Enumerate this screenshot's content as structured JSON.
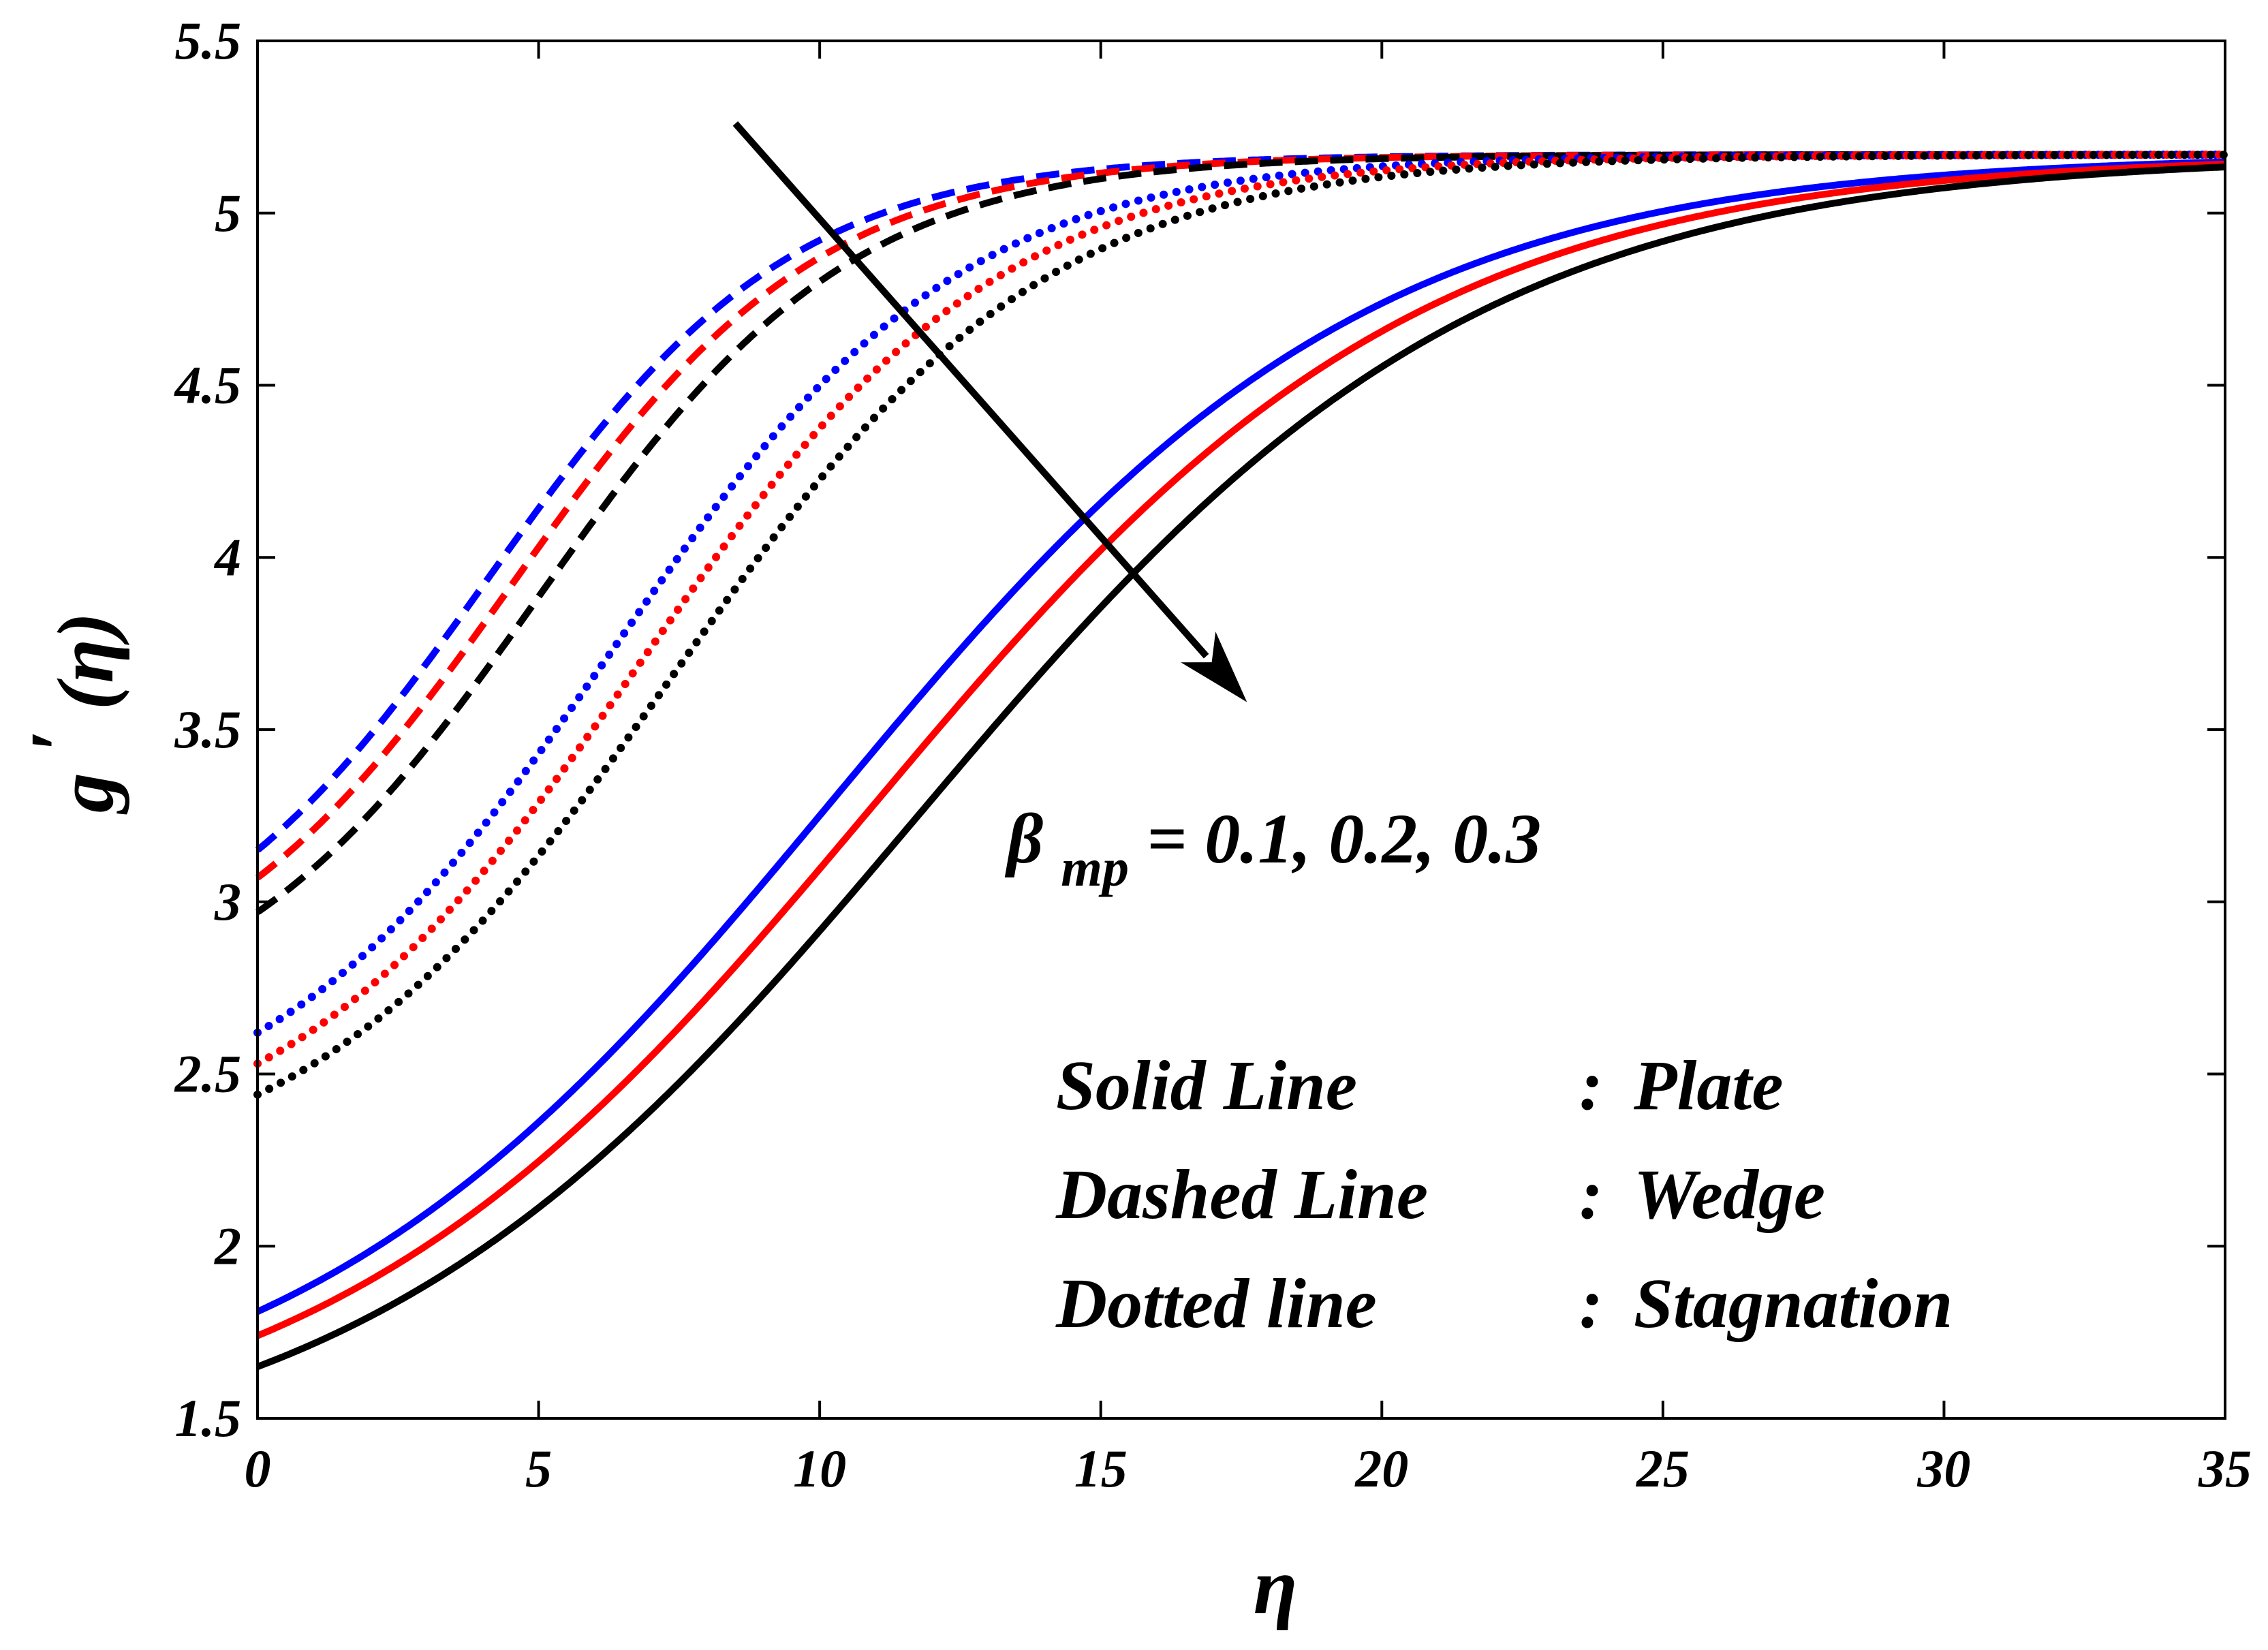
{
  "chart_data": {
    "type": "line",
    "title": "",
    "xlabel": "η",
    "ylabel_base": "g",
    "ylabel_prime": "′",
    "ylabel_arg": "(η)",
    "xlim": [
      0,
      35
    ],
    "ylim": [
      1.5,
      5.5
    ],
    "xticks": [
      0,
      5,
      10,
      15,
      20,
      25,
      30,
      35
    ],
    "yticks": [
      1.5,
      2,
      2.5,
      3,
      3.5,
      4,
      4.5,
      5,
      5.5
    ],
    "xtick_labels": [
      "0",
      "5",
      "10",
      "15",
      "20",
      "25",
      "30",
      "35"
    ],
    "ytick_labels": [
      "1.5",
      "2",
      "2.5",
      "3",
      "3.5",
      "4",
      "4.5",
      "5",
      "5.5"
    ],
    "grid": false,
    "asymptote": 5.17,
    "colors": {
      "blue": "#0000ff",
      "red": "#ff0000",
      "black": "#000000"
    },
    "series": [
      {
        "name": "Plate, β_mp = 0.1",
        "geometry": "Plate",
        "style": "solid",
        "color": "#0000ff",
        "g0": 1.81,
        "center": 10.2,
        "width": 4.8
      },
      {
        "name": "Plate, β_mp = 0.2",
        "geometry": "Plate",
        "style": "solid",
        "color": "#ff0000",
        "g0": 1.74,
        "center": 10.9,
        "width": 4.9
      },
      {
        "name": "Plate, β_mp = 0.3",
        "geometry": "Plate",
        "style": "solid",
        "color": "#000000",
        "g0": 1.65,
        "center": 11.7,
        "width": 5.0
      },
      {
        "name": "Wedge, β_mp = 0.1",
        "geometry": "Wedge",
        "style": "dashed",
        "color": "#0000ff",
        "g0": 3.15,
        "center": 4.1,
        "width": 2.7
      },
      {
        "name": "Wedge, β_mp = 0.2",
        "geometry": "Wedge",
        "style": "dashed",
        "color": "#ff0000",
        "g0": 3.07,
        "center": 4.5,
        "width": 2.75
      },
      {
        "name": "Wedge, β_mp = 0.3",
        "geometry": "Wedge",
        "style": "dashed",
        "color": "#000000",
        "g0": 2.97,
        "center": 5.0,
        "width": 2.8
      },
      {
        "name": "Stagnation, β_mp = 0.1",
        "geometry": "Stagnation",
        "style": "dotted",
        "color": "#0000ff",
        "g0": 2.62,
        "center": 6.3,
        "width": 3.1
      },
      {
        "name": "Stagnation, β_mp = 0.2",
        "geometry": "Stagnation",
        "style": "dotted",
        "color": "#ff0000",
        "g0": 2.53,
        "center": 6.8,
        "width": 3.2
      },
      {
        "name": "Stagnation, β_mp = 0.3",
        "geometry": "Stagnation",
        "style": "dotted",
        "color": "#000000",
        "g0": 2.44,
        "center": 7.4,
        "width": 3.3
      }
    ],
    "arrow": {
      "from": [
        8.5,
        5.26
      ],
      "to": [
        17.6,
        3.58
      ]
    },
    "annotation": {
      "beta": "β",
      "subscript": "mp",
      "rest": " = 0.1, 0.2, 0.3"
    },
    "legend_lines": [
      {
        "kind": "Solid Line",
        "sep": ":",
        "geometry": "Plate"
      },
      {
        "kind": "Dashed Line",
        "sep": ":",
        "geometry": "Wedge"
      },
      {
        "kind": "Dotted line",
        "sep": ":",
        "geometry": "Stagnation"
      }
    ]
  }
}
